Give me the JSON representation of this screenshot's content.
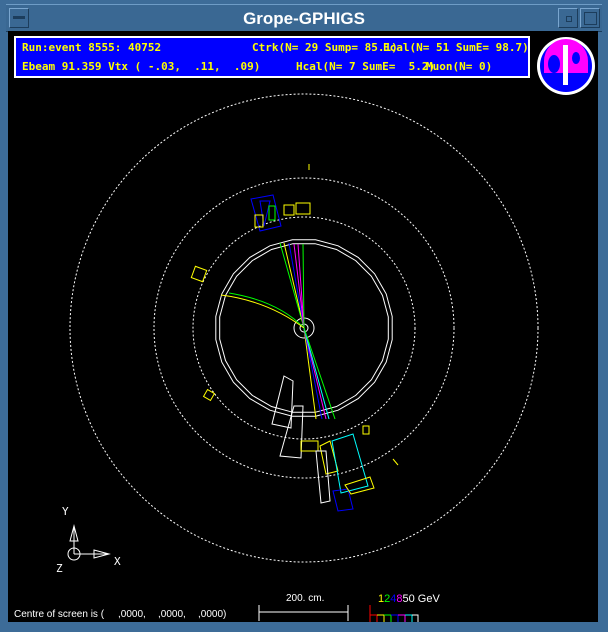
{
  "window": {
    "title": "Grope-GPHIGS"
  },
  "info": {
    "run_event": "Run:event 8555: 40752",
    "ctrk": "Ctrk(N= 29 Sump= 85.1)",
    "ecal": "Ecal(N= 51 SumE= 98.7)",
    "ebeam_vtx": "Ebeam 91.359 Vtx ( -.03,  .11,  .09)",
    "hcal": "Hcal(N= 7 SumE=  5.2)",
    "muon": "Muon(N= 0)"
  },
  "logo": {
    "text": "OPAL"
  },
  "axes": {
    "y": "Y",
    "x": "X",
    "z": "Z"
  },
  "footer": {
    "centre_label": "Centre of screen is (",
    "cx": ",0000,",
    "cy": ",0000,",
    "cz": ",0000)",
    "scale_label": "200. cm.",
    "energy_scale": [
      {
        "label": "1",
        "color": "#ffff00"
      },
      {
        "label": "2",
        "color": "#00ff00"
      },
      {
        "label": "4",
        "color": "#0000ff"
      },
      {
        "label": "8",
        "color": "#ff00ff"
      },
      {
        "label": "50",
        "color": "#ffffff"
      }
    ],
    "energy_unit": "GeV"
  },
  "colors": {
    "frame": "#3d6c98",
    "info_bg": "#0000ff",
    "info_text": "#ffff00"
  }
}
